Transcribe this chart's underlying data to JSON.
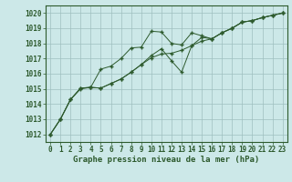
{
  "title": "Graphe pression niveau de la mer (hPa)",
  "hours": [
    0,
    1,
    2,
    3,
    4,
    5,
    6,
    7,
    8,
    9,
    10,
    11,
    12,
    13,
    14,
    15,
    16,
    17,
    18,
    19,
    20,
    21,
    22,
    23
  ],
  "ylim": [
    1011.5,
    1020.5
  ],
  "yticks": [
    1012,
    1013,
    1014,
    1015,
    1016,
    1017,
    1018,
    1019,
    1020
  ],
  "background_color": "#cce8e8",
  "grid_color": "#9fbfbf",
  "line_color": "#2d5a2d",
  "marker_color": "#2d5a2d",
  "series1": [
    1012.0,
    1013.0,
    1014.3,
    1015.0,
    1015.1,
    1016.3,
    1016.5,
    1017.0,
    1017.7,
    1017.75,
    1018.8,
    1018.75,
    1018.0,
    1017.9,
    1018.7,
    1018.5,
    1018.3,
    1018.7,
    1019.0,
    1019.4,
    1019.5,
    1019.7,
    1019.85,
    1020.0
  ],
  "series2": [
    1012.0,
    1013.0,
    1014.3,
    1015.05,
    1015.1,
    1015.05,
    1015.35,
    1015.65,
    1016.1,
    1016.6,
    1017.05,
    1017.3,
    1017.35,
    1017.55,
    1017.85,
    1018.4,
    1018.3,
    1018.7,
    1019.0,
    1019.4,
    1019.5,
    1019.7,
    1019.85,
    1020.0
  ],
  "series3": [
    1012.0,
    1013.0,
    1014.3,
    1015.05,
    1015.1,
    1015.05,
    1015.35,
    1015.65,
    1016.1,
    1016.6,
    1017.2,
    1017.65,
    1016.85,
    1016.1,
    1017.85,
    1018.15,
    1018.3,
    1018.7,
    1019.0,
    1019.4,
    1019.5,
    1019.7,
    1019.85,
    1020.0
  ],
  "title_fontsize": 6.5,
  "tick_fontsize": 5.5
}
